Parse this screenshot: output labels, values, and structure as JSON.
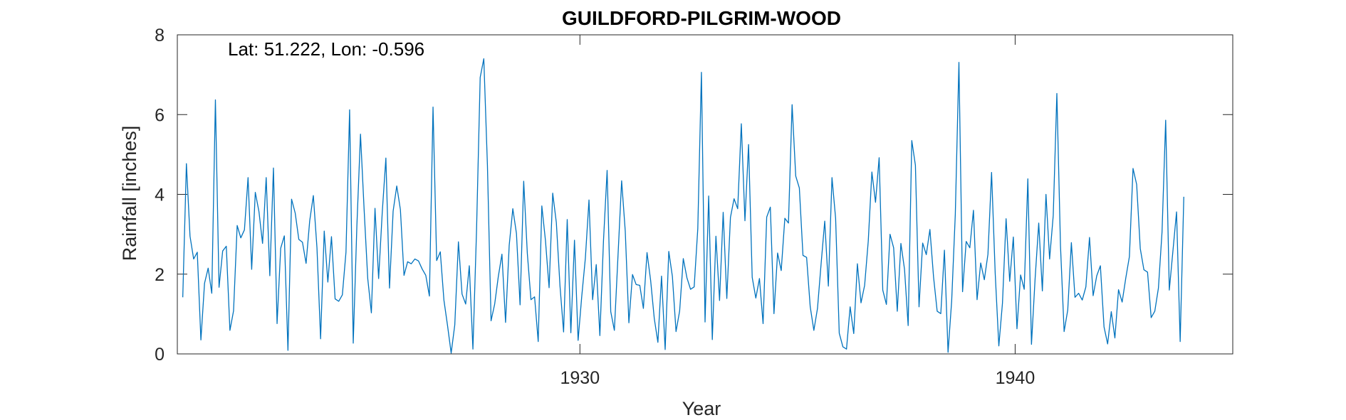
{
  "chart_data": {
    "type": "line",
    "title": "GUILDFORD-PILGRIM-WOOD",
    "annotation": "Lat: 51.222, Lon: -0.596",
    "xlabel": "Year",
    "ylabel": "Rainfall [inches]",
    "xlim": [
      1920.75,
      1945.0
    ],
    "ylim": [
      0,
      8
    ],
    "xticks": [
      1930,
      1940
    ],
    "yticks": [
      0,
      2,
      4,
      6,
      8
    ],
    "grid": false,
    "line_color": "#0072BD",
    "series": [
      {
        "x_start": 1920.875,
        "x_step": 0.08333333,
        "values": [
          1.42,
          4.77,
          2.95,
          2.38,
          2.55,
          0.35,
          1.77,
          2.15,
          1.52,
          6.37,
          1.67,
          2.58,
          2.7,
          0.59,
          1.08,
          3.22,
          2.91,
          3.11,
          4.42,
          2.12,
          4.05,
          3.57,
          2.77,
          4.42,
          1.96,
          4.66,
          0.76,
          2.65,
          2.96,
          0.09,
          3.88,
          3.53,
          2.87,
          2.8,
          2.27,
          3.34,
          3.97,
          2.66,
          0.38,
          3.08,
          1.8,
          2.94,
          1.38,
          1.32,
          1.48,
          2.55,
          6.12,
          0.27,
          3.2,
          5.51,
          3.62,
          1.89,
          1.03,
          3.65,
          1.89,
          3.55,
          4.91,
          1.65,
          3.58,
          4.21,
          3.62,
          1.97,
          2.31,
          2.26,
          2.38,
          2.33,
          2.13,
          1.97,
          1.45,
          6.19,
          2.34,
          2.56,
          1.35,
          0.71,
          0.02,
          0.73,
          2.81,
          1.5,
          1.25,
          2.21,
          0.12,
          3.11,
          6.93,
          7.4,
          4.73,
          0.83,
          1.25,
          1.94,
          2.5,
          0.79,
          2.72,
          3.64,
          3.02,
          1.23,
          4.33,
          2.52,
          1.36,
          1.43,
          0.31,
          3.71,
          2.84,
          1.66,
          4.03,
          3.29,
          1.71,
          0.55,
          3.37,
          0.53,
          2.85,
          0.34,
          1.44,
          2.4,
          3.86,
          1.36,
          2.24,
          0.46,
          2.84,
          4.6,
          1.06,
          0.59,
          2.46,
          4.34,
          3.08,
          0.78,
          1.99,
          1.74,
          1.72,
          1.14,
          2.54,
          1.84,
          0.89,
          0.29,
          1.95,
          0.11,
          2.57,
          1.94,
          0.56,
          1.08,
          2.39,
          1.91,
          1.62,
          1.68,
          3.14,
          7.06,
          0.8,
          3.96,
          0.36,
          2.95,
          1.34,
          3.55,
          1.39,
          3.42,
          3.89,
          3.64,
          5.77,
          3.34,
          5.25,
          1.92,
          1.4,
          1.89,
          0.76,
          3.43,
          3.68,
          1.01,
          2.53,
          2.09,
          3.4,
          3.28,
          6.25,
          4.46,
          4.16,
          2.47,
          2.42,
          1.18,
          0.59,
          1.14,
          2.26,
          3.33,
          1.7,
          4.42,
          3.4,
          0.52,
          0.18,
          0.12,
          1.18,
          0.51,
          2.26,
          1.28,
          1.72,
          2.83,
          4.56,
          3.8,
          4.92,
          1.6,
          1.24,
          3.0,
          2.66,
          1.07,
          2.77,
          2.12,
          0.71,
          5.35,
          4.73,
          1.18,
          2.78,
          2.49,
          3.12,
          1.93,
          1.07,
          1.01,
          2.6,
          0.04,
          1.33,
          3.5,
          7.31,
          1.56,
          2.82,
          2.66,
          3.6,
          1.36,
          2.28,
          1.86,
          2.5,
          4.55,
          2.02,
          0.2,
          1.27,
          3.39,
          1.82,
          2.93,
          0.63,
          1.98,
          1.62,
          4.39,
          0.24,
          1.88,
          3.28,
          1.58,
          4.0,
          2.38,
          3.47,
          6.53,
          2.71,
          0.56,
          1.1,
          2.79,
          1.42,
          1.52,
          1.35,
          1.68,
          2.92,
          1.46,
          1.96,
          2.21,
          0.68,
          0.25,
          1.06,
          0.4,
          1.61,
          1.3,
          1.9,
          2.44,
          4.65,
          4.25,
          2.64,
          2.11,
          2.05,
          0.91,
          1.07,
          1.65,
          3.06,
          5.86,
          1.6,
          2.58,
          3.56,
          0.31,
          3.94
        ]
      }
    ]
  }
}
